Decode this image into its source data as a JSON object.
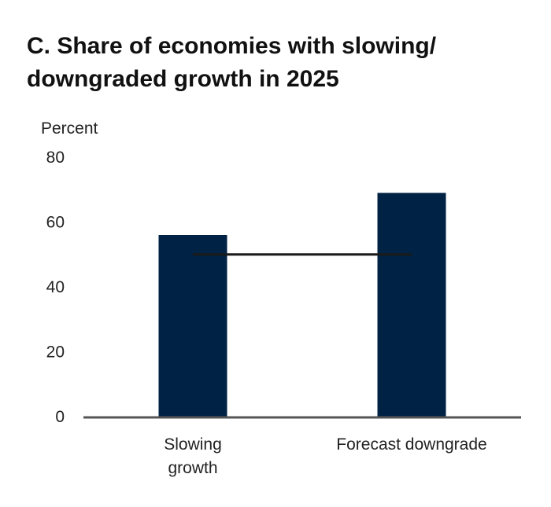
{
  "chart_data": {
    "type": "bar",
    "title": "C. Share of economies with slowing/ downgraded growth in 2025",
    "title_lines": [
      "C. Share of economies with slowing/",
      "downgraded growth in 2025"
    ],
    "ylabel": "Percent",
    "xlabel": "",
    "ylim": [
      0,
      80
    ],
    "yticks": [
      0,
      20,
      40,
      60,
      80
    ],
    "grid": false,
    "categories": [
      "Slowing growth",
      "Forecast downgrade"
    ],
    "category_lines": [
      [
        "Slowing",
        "growth"
      ],
      [
        "Forecast downgrade"
      ]
    ],
    "values": [
      56,
      69
    ],
    "reference_line": {
      "value": 50,
      "from_category": 0,
      "to_category": 1
    },
    "colors": {
      "bar": "#002244",
      "reference_line": "#1a1a1a",
      "axis": "#555555"
    }
  }
}
